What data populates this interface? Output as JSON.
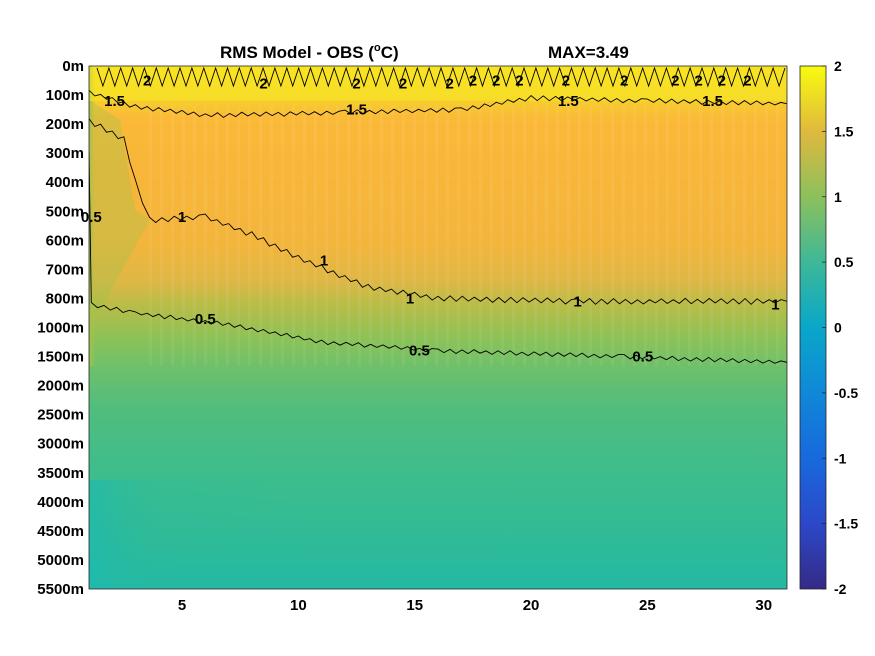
{
  "chart_data": {
    "type": "heatmap",
    "title_left": "RMS Model - OBS (",
    "title_unit": "C)",
    "title_degree": "o",
    "title_max": "MAX=3.49",
    "x": {
      "lim": [
        1,
        31
      ],
      "ticks": [
        5,
        10,
        15,
        20,
        25,
        30
      ],
      "tick_labels": [
        "5",
        "10",
        "15",
        "20",
        "25",
        "30"
      ]
    },
    "y_levels": [
      "0m",
      "100m",
      "200m",
      "300m",
      "400m",
      "500m",
      "600m",
      "700m",
      "800m",
      "1000m",
      "1500m",
      "2000m",
      "2500m",
      "3000m",
      "3500m",
      "4000m",
      "4500m",
      "5000m",
      "5500m"
    ],
    "colorbar": {
      "lim": [
        -2,
        2
      ],
      "ticks": [
        2,
        1.5,
        1,
        0.5,
        0,
        -0.5,
        -1,
        -1.5,
        -2
      ],
      "tick_labels": [
        "2",
        "1.5",
        "1",
        "0.5",
        "0",
        "-0.5",
        "-1",
        "-1.5",
        "-2"
      ],
      "colormap": "parula"
    },
    "contours": [
      {
        "level": 2,
        "labels": [
          {
            "text": "2",
            "x": 3.5,
            "y": 0.5
          },
          {
            "text": "2",
            "x": 8.5,
            "y": 0.6
          },
          {
            "text": "2",
            "x": 12.5,
            "y": 0.6
          },
          {
            "text": "2",
            "x": 14.5,
            "y": 0.6
          },
          {
            "text": "2",
            "x": 16.5,
            "y": 0.6
          },
          {
            "text": "2",
            "x": 17.5,
            "y": 0.5
          },
          {
            "text": "2",
            "x": 18.5,
            "y": 0.5
          },
          {
            "text": "2",
            "x": 19.5,
            "y": 0.5
          },
          {
            "text": "2",
            "x": 21.5,
            "y": 0.5
          },
          {
            "text": "2",
            "x": 24,
            "y": 0.5
          },
          {
            "text": "2",
            "x": 26.2,
            "y": 0.5
          },
          {
            "text": "2",
            "x": 27.2,
            "y": 0.5
          },
          {
            "text": "2",
            "x": 28.2,
            "y": 0.5
          },
          {
            "text": "2",
            "x": 29.3,
            "y": 0.5
          }
        ]
      },
      {
        "level": 1.5,
        "labels": [
          {
            "text": "1.5",
            "x": 2.1,
            "y": 1.2
          },
          {
            "text": "1.5",
            "x": 12.5,
            "y": 1.5
          },
          {
            "text": "1.5",
            "x": 21.6,
            "y": 1.2
          },
          {
            "text": "1.5",
            "x": 27.8,
            "y": 1.2
          }
        ]
      },
      {
        "level": 1,
        "labels": [
          {
            "text": "1",
            "x": 5,
            "y": 5.2
          },
          {
            "text": "1",
            "x": 11.1,
            "y": 6.7
          },
          {
            "text": "1",
            "x": 14.8,
            "y": 8.0
          },
          {
            "text": "1",
            "x": 22,
            "y": 8.1
          },
          {
            "text": "1",
            "x": 30.5,
            "y": 8.2
          }
        ]
      },
      {
        "level": 0.5,
        "labels": [
          {
            "text": "0.5",
            "x": 1.1,
            "y": 5.2
          },
          {
            "text": "0.5",
            "x": 6,
            "y": 8.7
          },
          {
            "text": "0.5",
            "x": 15.2,
            "y": 9.8
          },
          {
            "text": "0.5",
            "x": 24.8,
            "y": 10.0
          }
        ]
      }
    ]
  }
}
